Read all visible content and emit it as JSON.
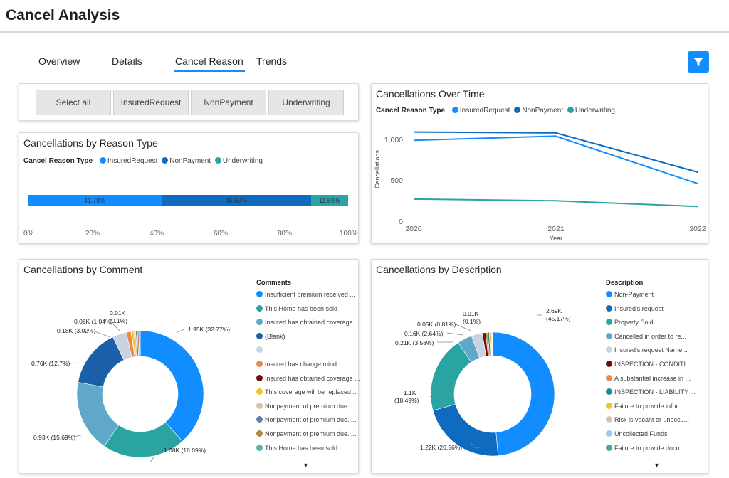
{
  "page": {
    "title": "Cancel Analysis"
  },
  "tabs": [
    {
      "label": "Overview"
    },
    {
      "label": "Details"
    },
    {
      "label": "Cancel Reason",
      "active": true
    },
    {
      "label": "Trends"
    }
  ],
  "filter_icon": "filter-icon",
  "slicer": {
    "buttons": [
      {
        "label": "Select all"
      },
      {
        "label": "InsuredRequest"
      },
      {
        "label": "NonPayment"
      },
      {
        "label": "Underwriting"
      }
    ]
  },
  "colors": {
    "insured": "#118dff",
    "nonpayment": "#0e6bbf",
    "underwriting": "#2aa3a3",
    "accent": "#118dff"
  },
  "reason_type": {
    "title": "Cancellations by Reason Type",
    "legend_title": "Cancel Reason Type",
    "legend": [
      "InsuredRequest",
      "NonPayment",
      "Underwriting"
    ],
    "segments": [
      {
        "label": "41.78%",
        "value": 41.78
      },
      {
        "label": "46.63%",
        "value": 46.63
      },
      {
        "label": "11.59%",
        "value": 11.59
      }
    ],
    "axis": [
      "0%",
      "20%",
      "40%",
      "60%",
      "80%",
      "100%"
    ]
  },
  "over_time": {
    "title": "Cancellations Over Time",
    "legend_title": "Cancel Reason Type",
    "legend": [
      "InsuredRequest",
      "NonPayment",
      "Underwriting"
    ],
    "ylabel": "Cancellations",
    "xlabel": "Year",
    "yticks": [
      "1,000",
      "500",
      "0"
    ],
    "xticks": [
      "2020",
      "2021",
      "2022"
    ]
  },
  "comment": {
    "title": "Cancellations by Comment",
    "legend_title": "Comments",
    "items": [
      "Insufficient premium received ...",
      "This Home has been sold",
      "Insured has obtained coverage ...",
      "(Blank)",
      "",
      "Insured has change mind.",
      "Insured has obtained coverage ...",
      "This coverage will be replaced ...",
      "Nonpayment of premium due. ...",
      "Nonpayment of premium due. ...",
      "Nonpayment of premium due. ...",
      "This Home has been sold."
    ],
    "item_colors": [
      "#118dff",
      "#2aa3a3",
      "#5fa8c9",
      "#1a5fa8",
      "#c8d3df",
      "#e98a4d",
      "#6b0f0f",
      "#f2c230",
      "#d9c3b0",
      "#6a7fa6",
      "#b0894a",
      "#55b3b0"
    ],
    "labels": [
      "1.95K (32.77%)",
      "1.08K (18.09%)",
      "0.93K (15.69%)",
      "0.76K (12.7%)",
      "0.18K (3.02%)",
      "0.06K (1.04%)",
      "0.01K",
      "(0.1%)"
    ]
  },
  "description": {
    "title": "Cancellations by Description",
    "legend_title": "Description",
    "items": [
      "Non-Payment",
      "Insured's request",
      "Property Sold",
      "Cancelled in order to re...",
      "Insured's request Name...",
      "INSPECTION - CONDITI...",
      "A substantial increase in ...",
      "INSPECTION - LIABILITY ...",
      "Failure to provide infor...",
      "Risk is vacant or unoccu...",
      "Uncollected Funds",
      "Failure to provide docu..."
    ],
    "item_colors": [
      "#118dff",
      "#0e6bbf",
      "#2aa3a3",
      "#5fa8c9",
      "#c8d3df",
      "#6b0f0f",
      "#e98a4d",
      "#1f8a8a",
      "#f2c230",
      "#d9c3b0",
      "#9ec9ee",
      "#3aa9a1"
    ],
    "labels": [
      "2.69K",
      "(45.17%)",
      "1.22K (20.56%)",
      "1.1K",
      "(18.49%)",
      "0.21K (3.58%)",
      "0.16K (2.64%)",
      "0.05K (0.81%)",
      "0.01K",
      "(0.1%)"
    ]
  },
  "chart_data": [
    {
      "type": "bar",
      "title": "Cancellations by Reason Type",
      "categories": [
        "InsuredRequest",
        "NonPayment",
        "Underwriting"
      ],
      "values": [
        41.78,
        46.63,
        11.59
      ],
      "xlim": [
        0,
        100
      ]
    },
    {
      "type": "line",
      "title": "Cancellations Over Time",
      "x": [
        2020,
        2021,
        2022
      ],
      "ylabel": "Cancellations",
      "xlabel": "Year",
      "ylim": [
        0,
        1100
      ],
      "series": [
        {
          "name": "InsuredRequest",
          "values": [
            990,
            1040,
            460
          ]
        },
        {
          "name": "NonPayment",
          "values": [
            1090,
            1080,
            600
          ]
        },
        {
          "name": "Underwriting",
          "values": [
            270,
            250,
            180
          ]
        }
      ]
    },
    {
      "type": "pie",
      "title": "Cancellations by Comment",
      "values": [
        32.77,
        18.09,
        15.69,
        12.7,
        3.02,
        1.04,
        0.1,
        0.5,
        0.4,
        0.4,
        0.3,
        0.3
      ]
    },
    {
      "type": "pie",
      "title": "Cancellations by Description",
      "values": [
        45.17,
        20.56,
        18.49,
        3.58,
        2.64,
        0.81,
        0.5,
        0.4,
        0.3,
        0.2,
        0.2,
        0.1
      ]
    }
  ]
}
